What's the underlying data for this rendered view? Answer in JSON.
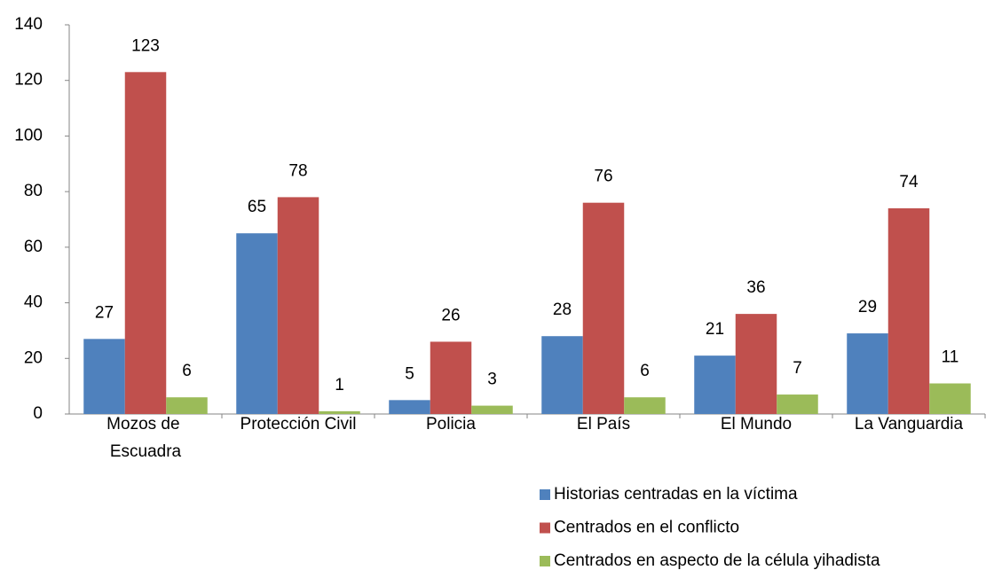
{
  "chart_data": {
    "type": "bar",
    "categories": [
      "Mozos de Escuadra",
      "Protección Civil",
      "Policia",
      "El País",
      "El Mundo",
      "La Vanguardia"
    ],
    "series": [
      {
        "name": "Historias centradas en la víctima",
        "color": "#4f81bd",
        "values": [
          27,
          65,
          5,
          28,
          21,
          29
        ]
      },
      {
        "name": "Centrados en el conflicto",
        "color": "#c0504d",
        "values": [
          123,
          78,
          26,
          76,
          36,
          74
        ]
      },
      {
        "name": "Centrados en aspecto de la célula yihadista",
        "color": "#9bbb59",
        "values": [
          6,
          1,
          3,
          6,
          7,
          11
        ]
      }
    ],
    "value_labels": [
      [
        "27",
        "65",
        "5",
        "28",
        "21",
        "29"
      ],
      [
        "123",
        "78",
        "26",
        "76",
        "36",
        "74"
      ],
      [
        "6",
        "1",
        "3",
        "6",
        "7",
        "11"
      ]
    ],
    "ylim": [
      0,
      140
    ],
    "yticks": [
      0,
      20,
      40,
      60,
      80,
      100,
      120,
      140
    ],
    "grid": false,
    "legend": "bottom-right"
  }
}
